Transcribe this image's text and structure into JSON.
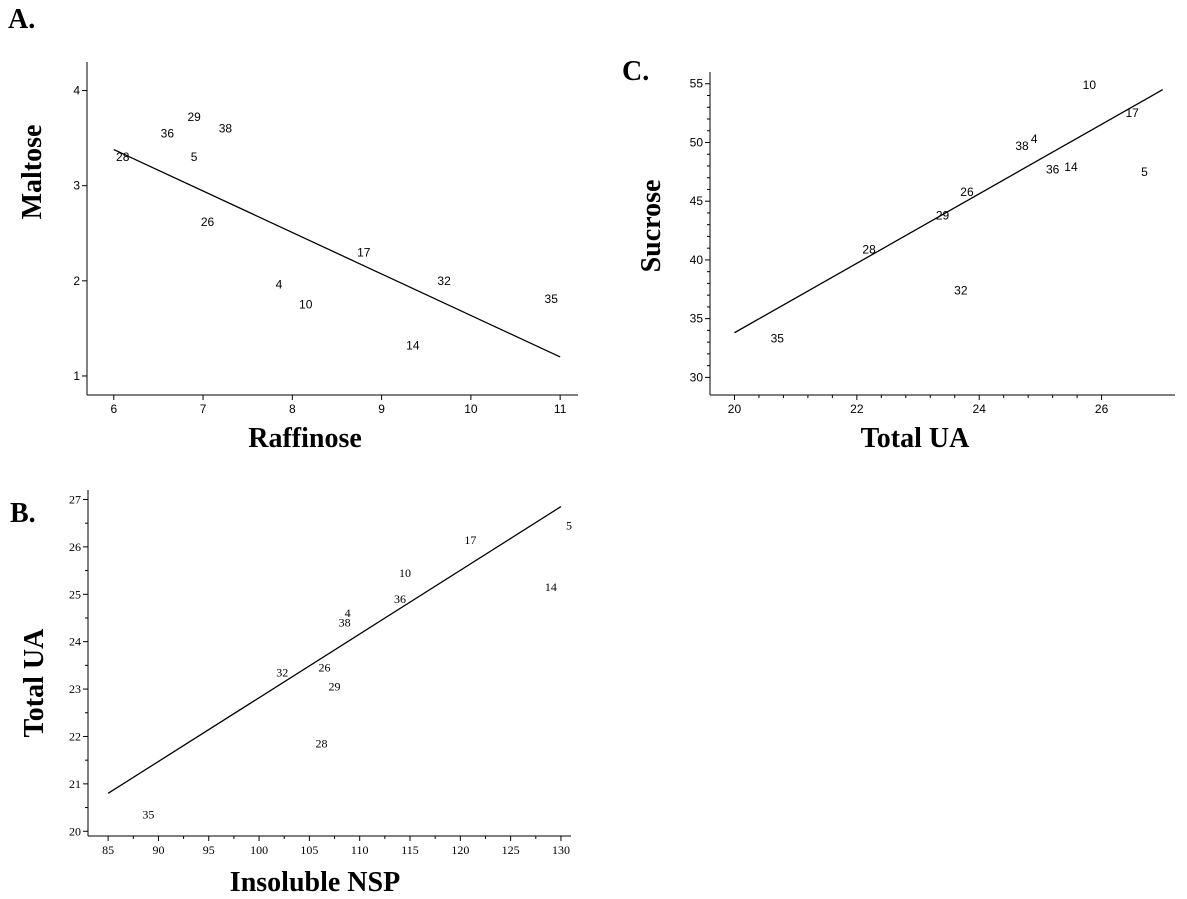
{
  "chart_data": [
    {
      "panel": "A.",
      "type": "scatter",
      "xlabel": "Raffinose",
      "ylabel": "Maltose",
      "xlim": [
        5.7,
        11.2
      ],
      "ylim": [
        0.8,
        4.3
      ],
      "xticks": [
        6,
        7,
        8,
        9,
        10,
        11
      ],
      "yticks": [
        1,
        2,
        3,
        4
      ],
      "points": [
        {
          "label": "28",
          "x": 6.1,
          "y": 3.3
        },
        {
          "label": "36",
          "x": 6.6,
          "y": 3.55
        },
        {
          "label": "29",
          "x": 6.9,
          "y": 3.72
        },
        {
          "label": "38",
          "x": 7.25,
          "y": 3.6
        },
        {
          "label": "5",
          "x": 6.9,
          "y": 3.3
        },
        {
          "label": "26",
          "x": 7.05,
          "y": 2.62
        },
        {
          "label": "17",
          "x": 8.8,
          "y": 2.3
        },
        {
          "label": "4",
          "x": 7.85,
          "y": 1.96
        },
        {
          "label": "10",
          "x": 8.15,
          "y": 1.75
        },
        {
          "label": "32",
          "x": 9.7,
          "y": 2.0
        },
        {
          "label": "35",
          "x": 10.9,
          "y": 1.81
        },
        {
          "label": "14",
          "x": 9.35,
          "y": 1.32
        }
      ],
      "fit_line": {
        "x": [
          6,
          11
        ],
        "y": [
          3.38,
          1.2
        ]
      },
      "grid": false
    },
    {
      "panel": "B.",
      "type": "scatter",
      "xlabel": "Insoluble NSP",
      "ylabel": "Total UA",
      "xlim": [
        83,
        131
      ],
      "ylim": [
        19.9,
        27.2
      ],
      "xticks": [
        85,
        90,
        95,
        100,
        105,
        110,
        115,
        120,
        125,
        130
      ],
      "yticks": [
        20,
        21,
        22,
        23,
        24,
        25,
        26,
        27
      ],
      "points": [
        {
          "label": "5",
          "x": 130.8,
          "y": 26.45
        },
        {
          "label": "17",
          "x": 121.0,
          "y": 26.15
        },
        {
          "label": "10",
          "x": 114.5,
          "y": 25.45
        },
        {
          "label": "14",
          "x": 129.0,
          "y": 25.15
        },
        {
          "label": "36",
          "x": 114.0,
          "y": 24.9
        },
        {
          "label": "4",
          "x": 108.8,
          "y": 24.6
        },
        {
          "label": "38",
          "x": 108.5,
          "y": 24.4
        },
        {
          "label": "32",
          "x": 102.3,
          "y": 23.35
        },
        {
          "label": "26",
          "x": 106.5,
          "y": 23.45
        },
        {
          "label": "29",
          "x": 107.5,
          "y": 23.05
        },
        {
          "label": "28",
          "x": 106.2,
          "y": 21.85
        },
        {
          "label": "35",
          "x": 89.0,
          "y": 20.35
        }
      ],
      "fit_line": {
        "x": [
          85,
          130
        ],
        "y": [
          20.8,
          26.85
        ]
      },
      "grid": false
    },
    {
      "panel": "C.",
      "type": "scatter",
      "xlabel": "Total UA",
      "ylabel": "Sucrose",
      "xlim": [
        19.6,
        27.2
      ],
      "ylim": [
        28.5,
        56
      ],
      "xticks": [
        20,
        22,
        24,
        26
      ],
      "yticks": [
        30,
        35,
        40,
        45,
        50,
        55
      ],
      "points": [
        {
          "label": "10",
          "x": 25.8,
          "y": 54.9
        },
        {
          "label": "17",
          "x": 26.5,
          "y": 52.5
        },
        {
          "label": "4",
          "x": 24.9,
          "y": 50.3
        },
        {
          "label": "38",
          "x": 24.7,
          "y": 49.7
        },
        {
          "label": "36",
          "x": 25.2,
          "y": 47.7
        },
        {
          "label": "14",
          "x": 25.5,
          "y": 47.9
        },
        {
          "label": "5",
          "x": 26.7,
          "y": 47.5
        },
        {
          "label": "26",
          "x": 23.8,
          "y": 45.8
        },
        {
          "label": "29",
          "x": 23.4,
          "y": 43.8
        },
        {
          "label": "28",
          "x": 22.2,
          "y": 40.9
        },
        {
          "label": "32",
          "x": 23.7,
          "y": 37.4
        },
        {
          "label": "35",
          "x": 20.7,
          "y": 33.3
        }
      ],
      "fit_line": {
        "x": [
          20,
          27
        ],
        "y": [
          33.8,
          54.5
        ]
      },
      "grid": false
    }
  ]
}
